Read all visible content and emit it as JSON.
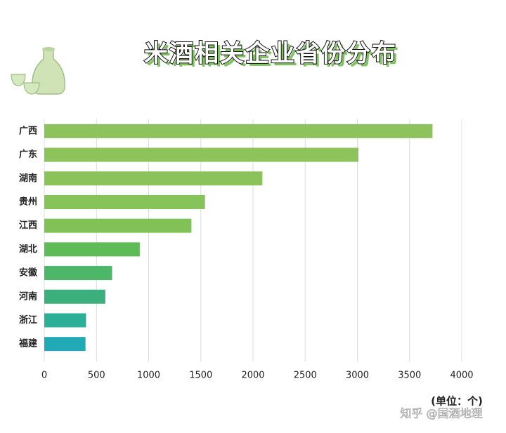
{
  "chart_data": {
    "type": "bar",
    "orientation": "horizontal",
    "title": "米酒相关企业省份分布",
    "unit_label": "(单位：个)",
    "watermark": "知乎 @国酒地理",
    "categories": [
      "广西",
      "广东",
      "湖南",
      "贵州",
      "江西",
      "湖北",
      "安徽",
      "河南",
      "浙江",
      "福建"
    ],
    "values": [
      3720,
      3010,
      2090,
      1540,
      1410,
      915,
      650,
      585,
      400,
      395
    ],
    "colors": [
      "#8dc25c",
      "#8cc35b",
      "#8bc25a",
      "#86c358",
      "#80c256",
      "#5fba58",
      "#4cb768",
      "#3bb07d",
      "#2dae96",
      "#22a9b6"
    ],
    "xlim": [
      0,
      4000
    ],
    "xticks": [
      0,
      500,
      1000,
      1500,
      2000,
      2500,
      3000,
      3500,
      4000
    ],
    "grid": true
  }
}
